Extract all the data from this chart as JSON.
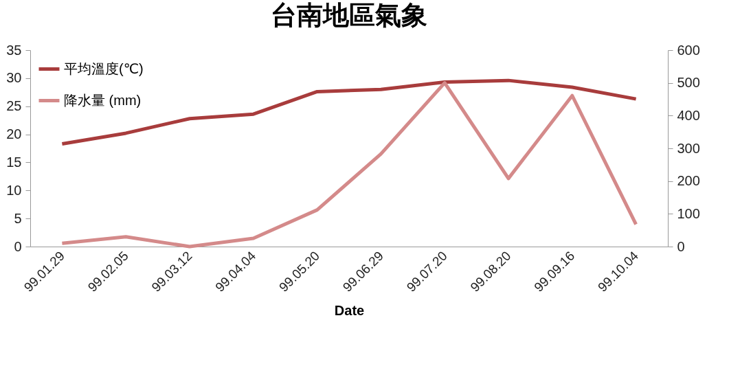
{
  "chart_data": {
    "type": "line",
    "title": "台南地區氣象",
    "xlabel": "Date",
    "categories": [
      "99.01.29",
      "99.02.05",
      "99.03.12",
      "99.04.04",
      "99.05.20",
      "99.06.29",
      "99.07.20",
      "99.08.20",
      "99.09.16",
      "99.10.04"
    ],
    "series": [
      {
        "name": "平均溫度(℃)",
        "color": "#a83c3c",
        "values": [
          18.3,
          20.2,
          22.8,
          23.6,
          27.6,
          28.0,
          29.3,
          29.6,
          28.4,
          26.3
        ]
      },
      {
        "name": "降水量 (mm)",
        "color": "#d48a8a",
        "axis": "y2",
        "values": [
          10,
          30,
          0,
          25,
          112,
          283,
          500,
          208,
          461,
          68
        ]
      }
    ],
    "ylim": [
      0,
      35
    ],
    "yticks": [
      0,
      5,
      10,
      15,
      20,
      25,
      30,
      35
    ],
    "y2lim": [
      0,
      600
    ],
    "y2ticks": [
      0,
      100,
      200,
      300,
      400,
      500,
      600
    ],
    "grid": false,
    "legend": "top left",
    "marker": "none",
    "line_style": "solid"
  }
}
